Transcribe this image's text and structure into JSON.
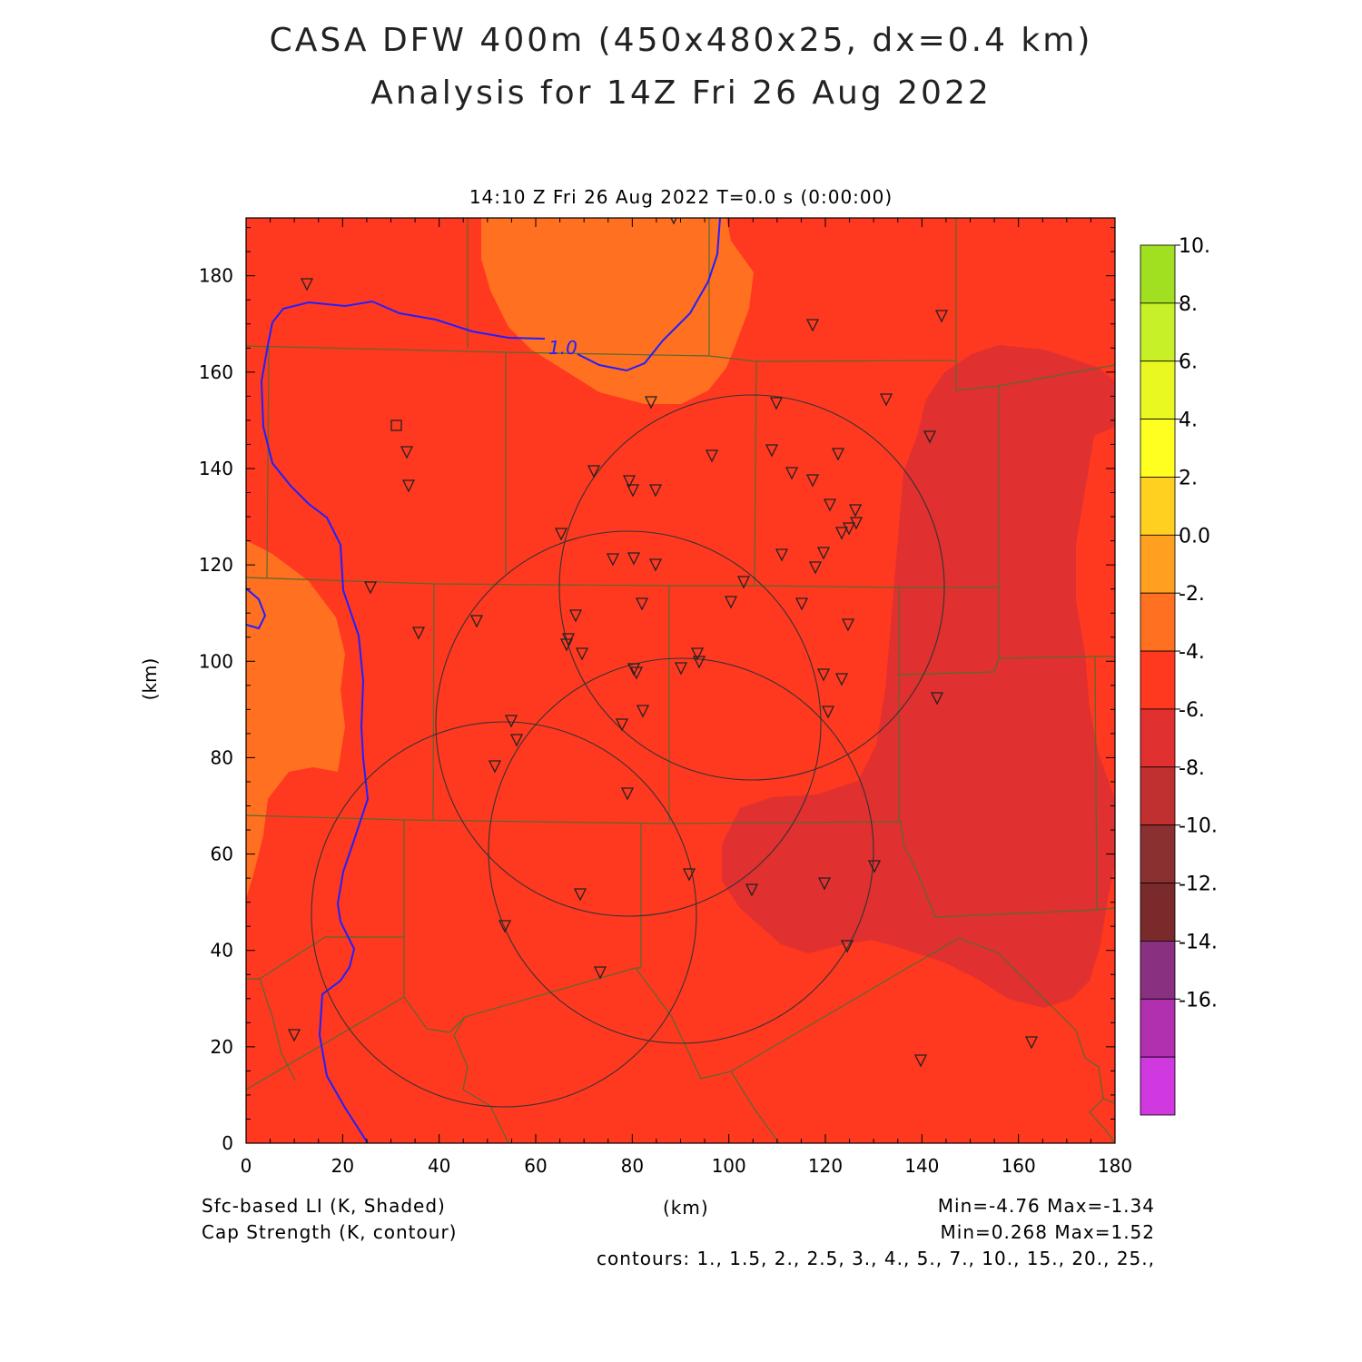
{
  "title_line1": "CASA DFW 400m (450x480x25, dx=0.4 km)",
  "title_line2": "Analysis for 14Z Fri 26 Aug 2022",
  "subtitle": "14:10 Z Fri 26 Aug 2022   T=0.0 s (0:00:00)",
  "axes": {
    "x_label": "(km)",
    "y_label": "(km)",
    "x_ticks": [
      "0",
      "20",
      "40",
      "60",
      "80",
      "100",
      "120",
      "140",
      "160",
      "180"
    ],
    "y_ticks": [
      "0",
      "20",
      "40",
      "60",
      "80",
      "100",
      "120",
      "140",
      "160",
      "180"
    ],
    "x_range": [
      0,
      180
    ],
    "y_range": [
      0,
      192
    ]
  },
  "colorbar": {
    "labels": [
      "10.",
      "8.",
      "6.",
      "4.",
      "2.",
      "0.0",
      "-2.",
      "-4.",
      "-6.",
      "-8.",
      "-10.",
      "-12.",
      "-14.",
      "-16."
    ],
    "colors": [
      "#a0e020",
      "#c8f028",
      "#e8f820",
      "#ffff20",
      "#ffd020",
      "#ffa020",
      "#ff7020",
      "#ff3820",
      "#e03030",
      "#c03030",
      "#8a3030",
      "#7a2a2a",
      "#8a3080",
      "#b030b0",
      "#d038e0"
    ]
  },
  "contour_label": "1.0",
  "footer": {
    "left_line1": "Sfc-based LI (K, Shaded)",
    "left_line2": "Cap Strength (K, contour)",
    "center": "(km)",
    "right_line1": "Min=-4.76 Max=-1.34",
    "right_line2": "Min=0.268 Max=1.52",
    "contours": "contours: 1., 1.5, 2., 2.5, 3., 4., 5., 7., 10., 15., 20., 25.,"
  },
  "map_colors": {
    "main_fill": "#ff3820",
    "warm_fill": "#ff7020",
    "cool_fill": "#e03030",
    "county_lines": "#556b2f",
    "river": "#2020ff",
    "radar_rings": "#333333"
  }
}
